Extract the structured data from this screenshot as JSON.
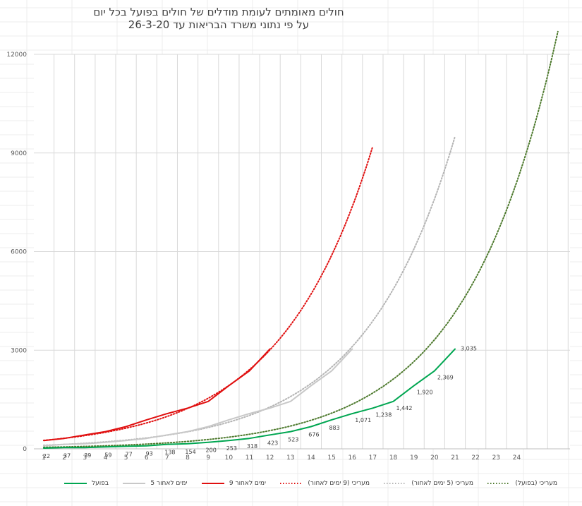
{
  "chart_data": {
    "type": "line",
    "title": "חולים מאומתים לעומת מודלים של חולים בפועל בכל יום",
    "subtitle": "על פי נתוני משרד הבריאות עד 26-3-20",
    "ylim": [
      0,
      12000
    ],
    "y_ticks": [
      "0",
      "3000",
      "6000",
      "9000",
      "12000"
    ],
    "x": [
      "1",
      "2",
      "3",
      "4",
      "5",
      "6",
      "7",
      "8",
      "9",
      "10",
      "11",
      "12",
      "13",
      "14",
      "15",
      "16",
      "17",
      "18",
      "19",
      "20",
      "21",
      "22",
      "23",
      "24"
    ],
    "grid": true,
    "legend_position": "bottom",
    "series": [
      {
        "name": "בפועל",
        "color": "#00a651",
        "style": "solid",
        "width": 2,
        "x": [
          1,
          2,
          3,
          4,
          5,
          6,
          7,
          8,
          9,
          10,
          11,
          12,
          13,
          14,
          15,
          16,
          17,
          18,
          19,
          20,
          21
        ],
        "values": [
          22,
          37,
          39,
          59,
          77,
          93,
          138,
          154,
          200,
          253,
          318,
          423,
          523,
          676,
          883,
          1071,
          1238,
          1442,
          1920,
          2369,
          3035
        ],
        "labels": [
          "22",
          "37",
          "39",
          "59",
          "77",
          "93",
          "138",
          "154",
          "200",
          "253",
          "318",
          "423",
          "523",
          "676",
          "883",
          "1,071",
          "1,238",
          "1,442",
          "1,920",
          "2,369",
          "3,035"
        ]
      },
      {
        "name": "5 ימים לאחור",
        "color": "#c8c8c8",
        "style": "solid",
        "width": 2,
        "x": [
          1,
          2,
          3,
          4,
          5,
          6,
          7,
          8,
          9,
          10,
          11,
          12,
          13,
          14,
          15,
          16
        ],
        "values": [
          93,
          138,
          154,
          200,
          253,
          318,
          423,
          523,
          676,
          883,
          1071,
          1238,
          1442,
          1920,
          2369,
          3035
        ]
      },
      {
        "name": "9 ימים לאחור",
        "color": "#e01010",
        "style": "solid",
        "width": 2,
        "x": [
          1,
          2,
          3,
          4,
          5,
          6,
          7,
          8,
          9,
          10,
          11,
          12
        ],
        "values": [
          253,
          318,
          423,
          523,
          676,
          883,
          1071,
          1238,
          1442,
          1920,
          2369,
          3035
        ]
      },
      {
        "name": "מעריכי (9 ימים לאחור)",
        "color": "#e01010",
        "style": "dotted",
        "width": 2,
        "fit": {
          "a": 206,
          "b": 0.2235,
          "x_start": 1,
          "x_end": 17
        }
      },
      {
        "name": "מעריכי (5 ימים לאחור)",
        "color": "#b4b4b4",
        "style": "dotted",
        "width": 2,
        "fit": {
          "a": 87,
          "b": 0.2235,
          "x_start": 1,
          "x_end": 21
        }
      },
      {
        "name": "מעריכי (בפועל)",
        "color": "#4e7a2e",
        "style": "dotted",
        "width": 2,
        "fit": {
          "a": 38,
          "b": 0.2235,
          "x_start": 1,
          "x_end": 26
        }
      }
    ]
  }
}
